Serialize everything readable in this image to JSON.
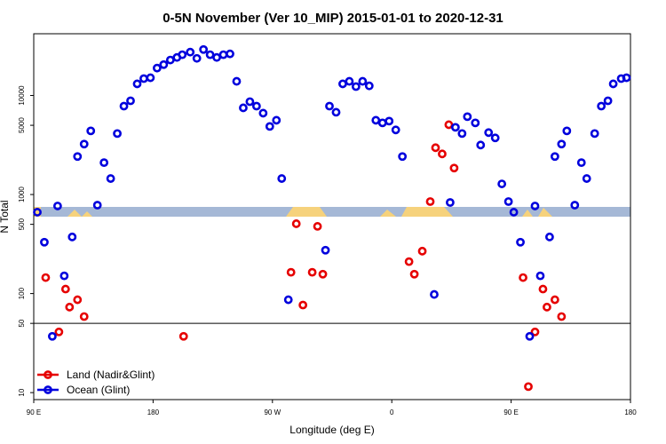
{
  "chart_data": {
    "type": "scatter",
    "title": "0-5N November (Ver 10_MIP)   2015-01-01 to 2020-12-31",
    "x_label": "Longitude (deg E)",
    "y_label": "N Total",
    "xlim": [
      90,
      540
    ],
    "ylim": [
      8.5,
      42000
    ],
    "log_y": true,
    "hline": 50,
    "legend": "bottom-left",
    "xticks": [
      {
        "value": 90,
        "label": "90 E"
      },
      {
        "value": 180,
        "label": "180"
      },
      {
        "value": 270,
        "label": "90 W"
      },
      {
        "value": 360,
        "label": "0"
      },
      {
        "value": 450,
        "label": "90 E"
      },
      {
        "value": 540,
        "label": "180"
      }
    ],
    "yticks": [
      10,
      50,
      100,
      500,
      1000,
      5000,
      10000
    ],
    "series": [
      {
        "name": "Land (Nadir&Glint)",
        "color": "#e60000",
        "x": [
          99,
          109,
          114,
          117,
          123,
          128,
          203,
          284,
          288,
          293,
          300,
          304,
          308,
          373,
          377,
          383,
          389,
          393,
          398,
          403,
          407,
          459,
          463,
          468,
          474,
          477,
          483,
          488
        ],
        "values": [
          145,
          41,
          111,
          73,
          86.6,
          58.6,
          37,
          164,
          507,
          76.6,
          164,
          477,
          157,
          210,
          157,
          268,
          849,
          2970,
          2570,
          5070,
          1850,
          145,
          11.5,
          41,
          111,
          73,
          86.6,
          58.6
        ]
      },
      {
        "name": "Ocean (Glint)",
        "color": "#0000dd",
        "x": [
          92.7,
          98,
          104,
          108,
          113,
          119,
          123,
          128,
          133,
          138,
          143,
          148,
          153,
          158,
          163,
          168,
          173,
          178,
          183,
          188,
          193,
          198,
          202,
          208,
          213,
          218,
          223,
          228,
          233,
          238,
          243,
          248,
          253,
          258,
          263,
          268,
          273,
          277,
          282,
          310,
          313,
          318,
          323,
          328,
          333,
          338,
          343,
          348,
          353,
          358,
          363,
          368,
          392,
          404,
          408,
          413,
          417,
          423,
          427,
          433,
          438,
          443,
          448,
          452,
          457,
          464,
          468,
          472,
          479,
          483,
          488,
          492,
          498,
          503,
          507,
          513,
          518,
          523,
          527,
          533,
          537
        ],
        "values": [
          663,
          330,
          37,
          766,
          151,
          373,
          2420,
          3230,
          4390,
          781,
          2100,
          1450,
          4130,
          7810,
          8840,
          13100,
          14800,
          15100,
          18900,
          20500,
          22800,
          24200,
          25800,
          27400,
          23700,
          29100,
          25800,
          24200,
          25800,
          26300,
          13900,
          7500,
          8660,
          7810,
          6630,
          4870,
          5620,
          1450,
          86.6,
          274,
          7810,
          6770,
          13100,
          13900,
          12300,
          13900,
          12500,
          5620,
          5290,
          5510,
          4490,
          2420,
          98,
          831,
          4770,
          4130,
          6110,
          5290,
          3160,
          4220,
          3730,
          1280,
          849,
          663,
          330,
          37,
          766,
          151,
          373,
          2420,
          3230,
          4390,
          781,
          2100,
          1450,
          4130,
          7810,
          8840,
          13100,
          14800,
          15100
        ]
      }
    ]
  }
}
